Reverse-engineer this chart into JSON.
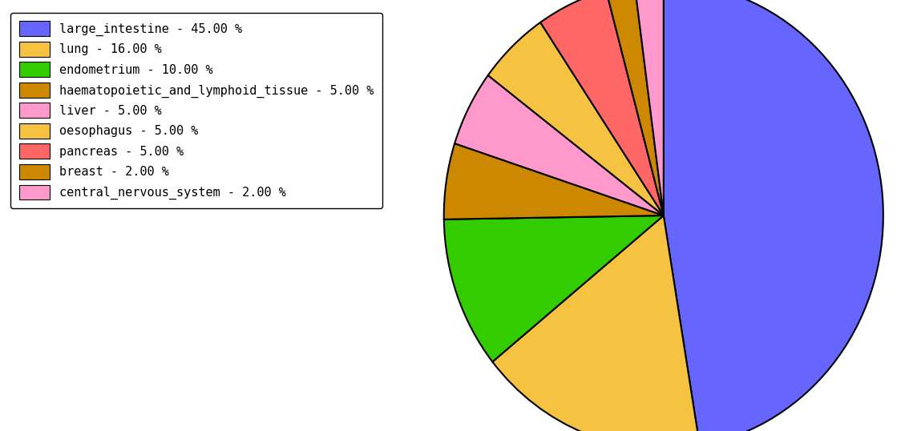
{
  "labels": [
    "large_intestine",
    "lung",
    "endometrium",
    "haematopoietic_and_lymphoid_tissue",
    "liver",
    "oesophagus",
    "pancreas",
    "breast",
    "central_nervous_system"
  ],
  "values": [
    45.0,
    16.0,
    10.0,
    5.0,
    5.0,
    5.0,
    5.0,
    2.0,
    2.0
  ],
  "colors": [
    "#6666ff",
    "#f5c242",
    "#33cc00",
    "#cc8800",
    "#ff99cc",
    "#f5c242",
    "#ff6666",
    "#cc8800",
    "#ff99cc"
  ],
  "legend_labels": [
    "large_intestine - 45.00 %",
    "lung - 16.00 %",
    "endometrium - 10.00 %",
    "haematopoietic_and_lymphoid_tissue - 5.00 %",
    "liver - 5.00 %",
    "oesophagus - 5.00 %",
    "pancreas - 5.00 %",
    "breast - 2.00 %",
    "central_nervous_system - 2.00 %"
  ],
  "legend_colors": [
    "#6666ff",
    "#f5c242",
    "#33cc00",
    "#cc8800",
    "#ff99cc",
    "#f5c242",
    "#ff6666",
    "#cc8800",
    "#ff99cc"
  ],
  "figsize": [
    11.34,
    5.38
  ],
  "dpi": 100,
  "start_angle": 90,
  "background_color": "#ffffff"
}
